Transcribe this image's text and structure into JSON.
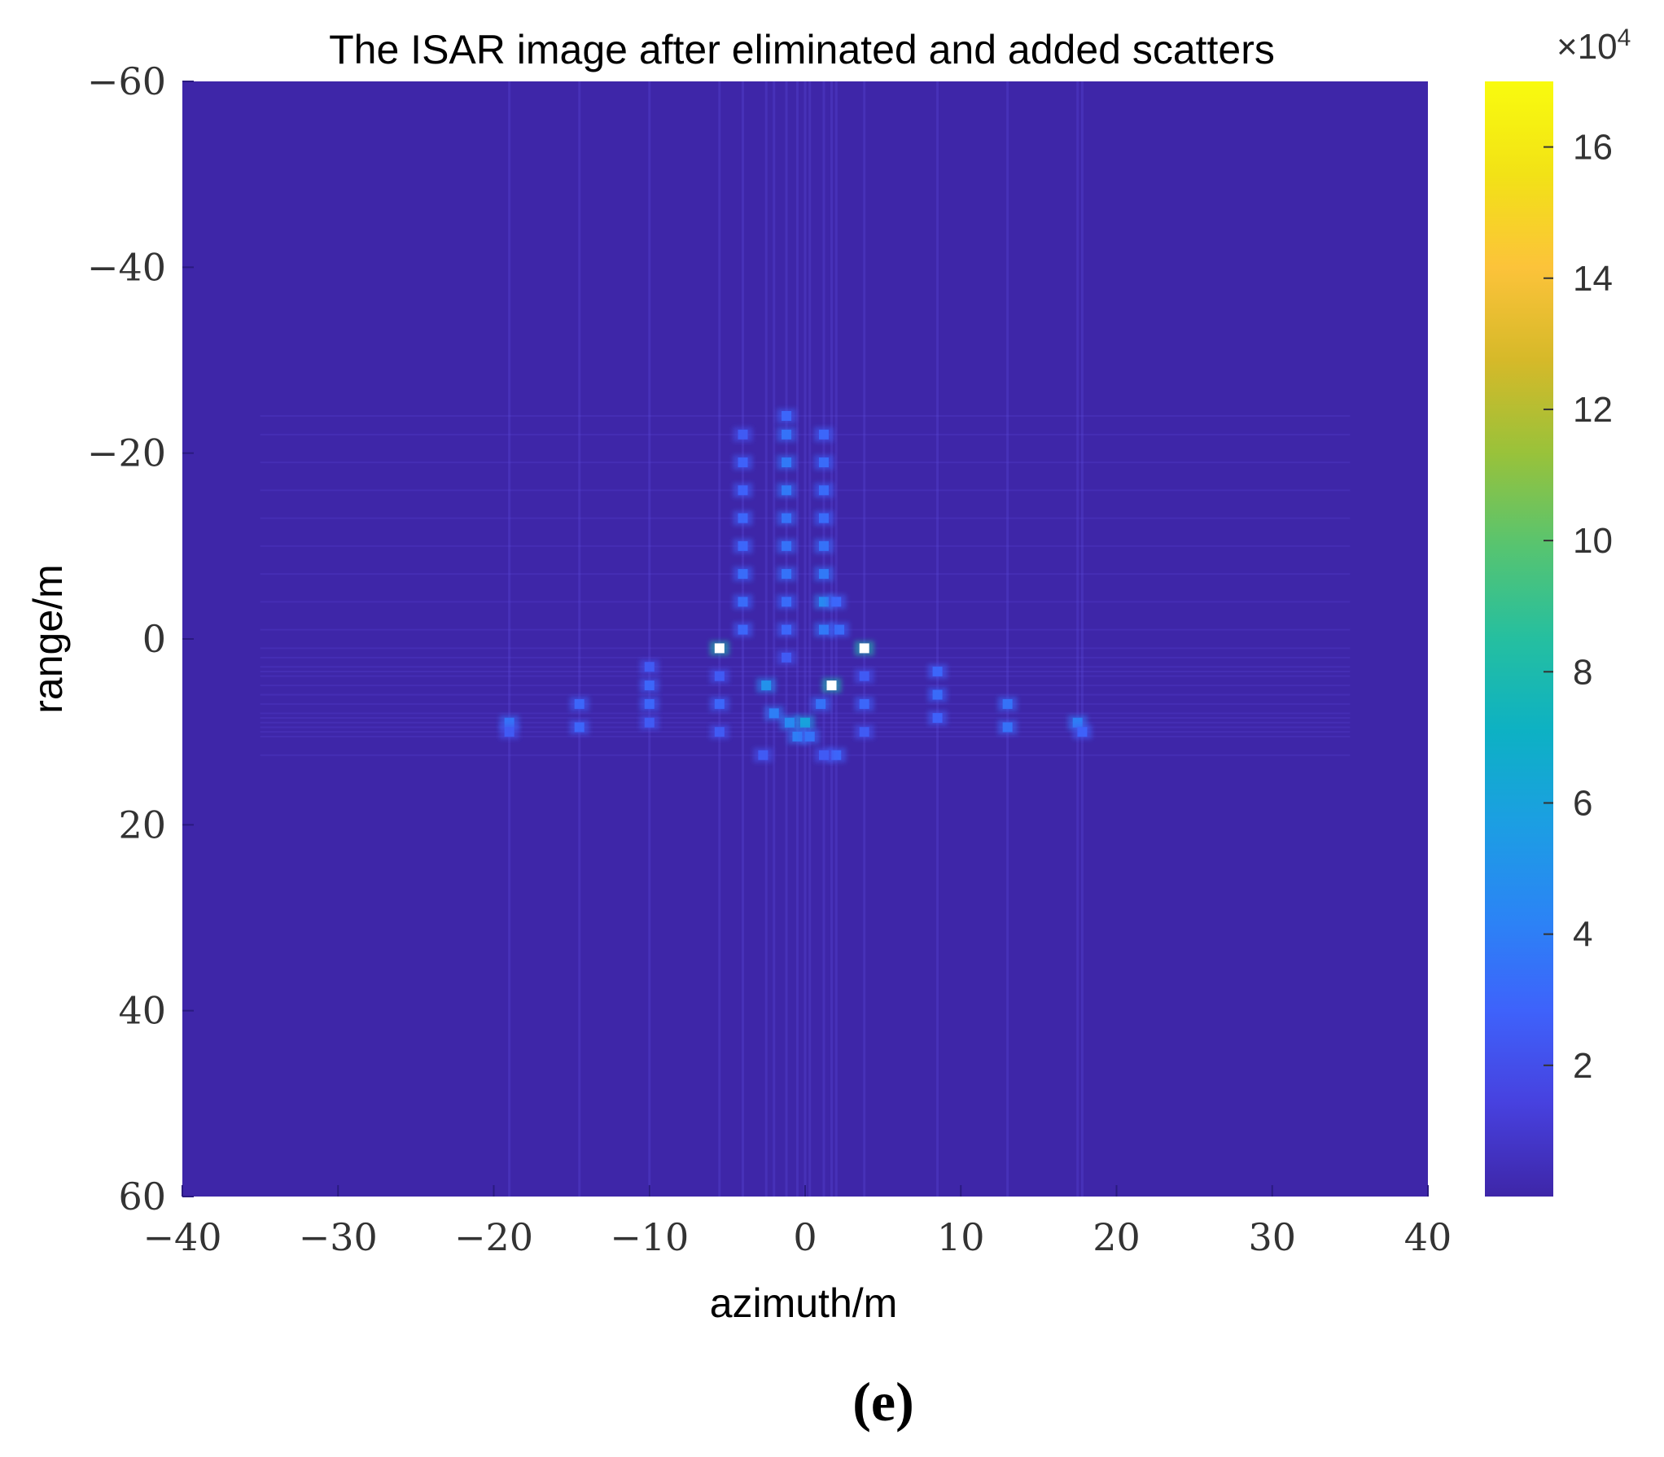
{
  "panel_label": "(e)",
  "chart_data": {
    "type": "heatmap",
    "title": "The ISAR image after eliminated and added scatters",
    "xlabel": "azimuth/m",
    "ylabel": "range/m",
    "xlim": [
      -40,
      40
    ],
    "ylim": [
      -60,
      60
    ],
    "y_axis_reversed": true,
    "x_ticks": [
      -40,
      -30,
      -20,
      -10,
      0,
      10,
      20,
      30,
      40
    ],
    "x_tick_labels": [
      "−40",
      "−30",
      "−20",
      "−10",
      "0",
      "10",
      "20",
      "30",
      "40"
    ],
    "y_ticks": [
      -60,
      -40,
      -20,
      0,
      20,
      40,
      60
    ],
    "y_tick_labels": [
      "−60",
      "−40",
      "−20",
      "0",
      "20",
      "40",
      "60"
    ],
    "grid": false,
    "colorbar": {
      "multiplier_label": "×10",
      "multiplier_exponent": "4",
      "range": [
        0,
        17
      ],
      "ticks": [
        2,
        4,
        6,
        8,
        10,
        12,
        14,
        16
      ],
      "tick_labels": [
        "2",
        "4",
        "6",
        "8",
        "10",
        "12",
        "14",
        "16"
      ],
      "colormap": [
        "#3e26a8",
        "#4741df",
        "#3e62fb",
        "#2b84f5",
        "#1c9ee3",
        "#0db1c4",
        "#25bfa0",
        "#57c470",
        "#99c23a",
        "#d6b929",
        "#fcc33a",
        "#f2e216",
        "#f9fb0e"
      ]
    },
    "background_color": "#3e26a8",
    "scatterers_note_units": "x = azimuth (m), y = range (m), v = intensity (×10^4)",
    "scatterers": [
      {
        "x": -4,
        "y": -22,
        "v": 2.5
      },
      {
        "x": -4,
        "y": -19,
        "v": 2.8
      },
      {
        "x": -4,
        "y": -16,
        "v": 2.8
      },
      {
        "x": -4,
        "y": -13,
        "v": 3.0
      },
      {
        "x": -4,
        "y": -10,
        "v": 3.0
      },
      {
        "x": -4,
        "y": -7,
        "v": 3.2
      },
      {
        "x": -4,
        "y": -4,
        "v": 3.2
      },
      {
        "x": -4,
        "y": -1,
        "v": 3.0
      },
      {
        "x": -1.2,
        "y": -24,
        "v": 3.0
      },
      {
        "x": -1.2,
        "y": -22,
        "v": 3.5
      },
      {
        "x": -1.2,
        "y": -19,
        "v": 3.8
      },
      {
        "x": -1.2,
        "y": -16,
        "v": 3.8
      },
      {
        "x": -1.2,
        "y": -13,
        "v": 3.5
      },
      {
        "x": -1.2,
        "y": -10,
        "v": 3.5
      },
      {
        "x": -1.2,
        "y": -7,
        "v": 3.5
      },
      {
        "x": -1.2,
        "y": -4,
        "v": 3.2
      },
      {
        "x": -1.2,
        "y": -1,
        "v": 3.0
      },
      {
        "x": -1.2,
        "y": 2,
        "v": 2.5
      },
      {
        "x": 1.2,
        "y": -22,
        "v": 3.0
      },
      {
        "x": 1.2,
        "y": -19,
        "v": 3.2
      },
      {
        "x": 1.2,
        "y": -16,
        "v": 3.2
      },
      {
        "x": 1.2,
        "y": -13,
        "v": 3.2
      },
      {
        "x": 1.2,
        "y": -10,
        "v": 3.5
      },
      {
        "x": 1.2,
        "y": -7,
        "v": 3.8
      },
      {
        "x": 1.2,
        "y": -4,
        "v": 4.5
      },
      {
        "x": 1.2,
        "y": -1,
        "v": 3.8
      },
      {
        "x": 2,
        "y": -4,
        "v": 3.0
      },
      {
        "x": 2.2,
        "y": -1,
        "v": 3.2
      },
      {
        "x": -5.5,
        "y": 1,
        "v": 9.0
      },
      {
        "x": -5.5,
        "y": 4,
        "v": 2.5
      },
      {
        "x": -5.5,
        "y": 7,
        "v": 3.0
      },
      {
        "x": -5.5,
        "y": 10,
        "v": 2.5
      },
      {
        "x": 3.8,
        "y": 1,
        "v": 9.0
      },
      {
        "x": 3.8,
        "y": 4,
        "v": 2.5
      },
      {
        "x": 3.8,
        "y": 7,
        "v": 3.0
      },
      {
        "x": 3.8,
        "y": 10,
        "v": 2.5
      },
      {
        "x": -2.5,
        "y": 5,
        "v": 5.0
      },
      {
        "x": -2,
        "y": 8,
        "v": 4.0
      },
      {
        "x": -1,
        "y": 9,
        "v": 4.5
      },
      {
        "x": 0,
        "y": 9,
        "v": 6.0
      },
      {
        "x": 1.7,
        "y": 5,
        "v": 9.0
      },
      {
        "x": 1,
        "y": 7,
        "v": 3.5
      },
      {
        "x": -0.5,
        "y": 10.5,
        "v": 4.0
      },
      {
        "x": 0.3,
        "y": 10.5,
        "v": 3.5
      },
      {
        "x": -2.7,
        "y": 12.5,
        "v": 2.5
      },
      {
        "x": 2,
        "y": 12.5,
        "v": 3.0
      },
      {
        "x": 1.2,
        "y": 12.5,
        "v": 2.5
      },
      {
        "x": 8.5,
        "y": 3.5,
        "v": 3.0
      },
      {
        "x": 8.5,
        "y": 6,
        "v": 3.2
      },
      {
        "x": 8.5,
        "y": 8.5,
        "v": 2.8
      },
      {
        "x": 13,
        "y": 7,
        "v": 3.5
      },
      {
        "x": 13,
        "y": 9.5,
        "v": 3.5
      },
      {
        "x": 17.5,
        "y": 9,
        "v": 4.0
      },
      {
        "x": 17.8,
        "y": 10,
        "v": 2.8
      },
      {
        "x": -10,
        "y": 3,
        "v": 2.5
      },
      {
        "x": -10,
        "y": 5,
        "v": 3.0
      },
      {
        "x": -10,
        "y": 7,
        "v": 3.0
      },
      {
        "x": -10,
        "y": 9,
        "v": 2.5
      },
      {
        "x": -14.5,
        "y": 7,
        "v": 3.0
      },
      {
        "x": -14.5,
        "y": 9.5,
        "v": 3.0
      },
      {
        "x": -19,
        "y": 9,
        "v": 3.5
      },
      {
        "x": -19,
        "y": 10,
        "v": 2.5
      }
    ]
  }
}
